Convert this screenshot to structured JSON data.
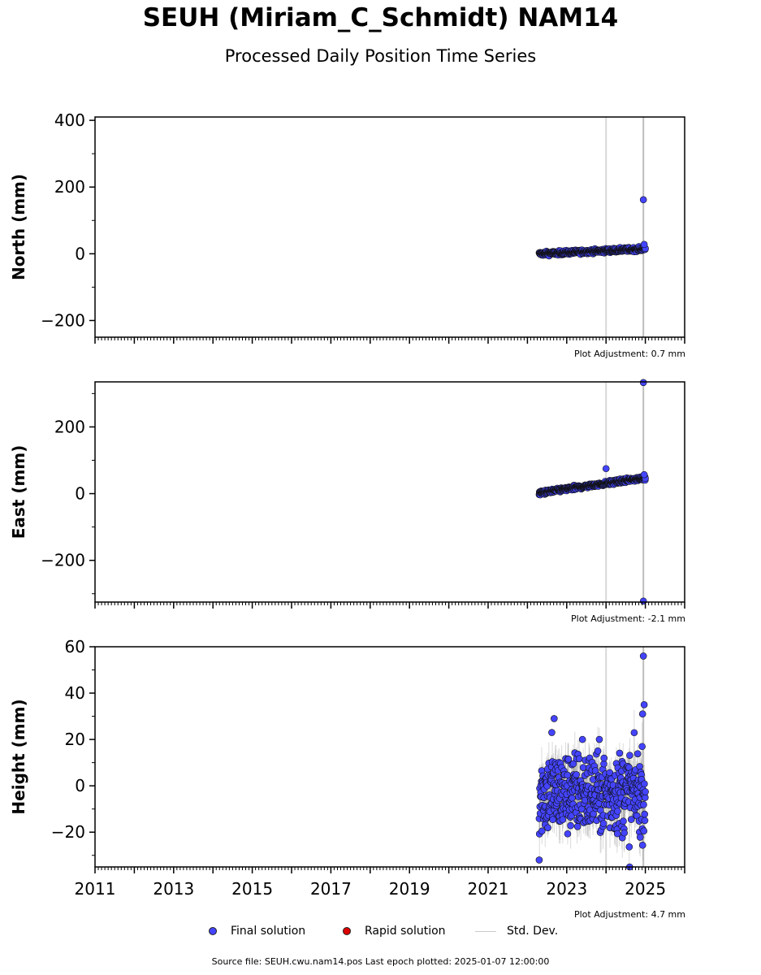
{
  "header": {
    "title": "SEUH (Miriam_C_Schmidt) NAM14",
    "subtitle": "Processed Daily Position Time Series"
  },
  "colors": {
    "final_solution": "#4444ff",
    "rapid_solution": "#dd0000",
    "std_dev": "#cccccc",
    "marker_edge": "#111111"
  },
  "legend": {
    "final": "Final solution",
    "rapid": "Rapid solution",
    "std": "Std. Dev."
  },
  "footer": {
    "source": "Source file: SEUH.cwu.nam14.pos  Last epoch plotted: 2025-01-07 12:00:00"
  },
  "chart_data": [
    {
      "type": "scatter",
      "panel": "north",
      "ylabel": "North (mm)",
      "adjustment": "Plot Adjustment: 0.7 mm",
      "xlim": [
        2011.0,
        2026.0
      ],
      "ylim": [
        -250,
        410
      ],
      "yticks": [
        -200,
        0,
        200,
        400
      ],
      "x_tick_labels": [],
      "vlines": [
        2024.0,
        2024.95
      ],
      "trend": {
        "start": 2022.3,
        "end": 2025.0,
        "y_start": 0,
        "y_end": 15
      },
      "noise": 3,
      "std": 3,
      "outliers": [
        {
          "x": 2024.95,
          "y": 162
        },
        {
          "x": 2024.97,
          "y": 28
        }
      ],
      "series": [
        {
          "name": "Final solution"
        }
      ]
    },
    {
      "type": "scatter",
      "panel": "east",
      "ylabel": "East (mm)",
      "adjustment": "Plot Adjustment: -2.1 mm",
      "xlim": [
        2011.0,
        2026.0
      ],
      "ylim": [
        -325,
        335
      ],
      "yticks": [
        -200,
        0,
        200
      ],
      "x_tick_labels": [],
      "vlines": [
        2024.0,
        2024.95
      ],
      "trend": {
        "start": 2022.3,
        "end": 2025.0,
        "y_start": 2,
        "y_end": 48
      },
      "noise": 3,
      "std": 3,
      "outliers": [
        {
          "x": 2024.95,
          "y": 333
        },
        {
          "x": 2024.95,
          "y": -322
        },
        {
          "x": 2024.0,
          "y": 75
        },
        {
          "x": 2024.97,
          "y": 57
        }
      ],
      "series": [
        {
          "name": "Final solution"
        }
      ]
    },
    {
      "type": "scatter",
      "panel": "height",
      "ylabel": "Height (mm)",
      "adjustment": "Plot Adjustment: 4.7 mm",
      "xlim": [
        2011.0,
        2026.0
      ],
      "ylim": [
        -35,
        60
      ],
      "yticks": [
        -20,
        0,
        20,
        40,
        60
      ],
      "x_tick_labels": [
        "2011",
        "2013",
        "2015",
        "2017",
        "2019",
        "2021",
        "2023",
        "2025"
      ],
      "vlines": [
        2024.0,
        2024.95
      ],
      "trend": {
        "start": 2022.3,
        "end": 2025.0,
        "y_start": -3,
        "y_end": -3
      },
      "noise": 9,
      "std": 7,
      "outliers": [
        {
          "x": 2024.95,
          "y": 56
        },
        {
          "x": 2024.97,
          "y": 35
        },
        {
          "x": 2024.93,
          "y": 31
        },
        {
          "x": 2022.68,
          "y": 29
        },
        {
          "x": 2022.3,
          "y": -32
        },
        {
          "x": 2024.6,
          "y": -35
        },
        {
          "x": 2022.62,
          "y": 23
        },
        {
          "x": 2023.4,
          "y": 20
        }
      ],
      "series": [
        {
          "name": "Final solution"
        }
      ]
    }
  ]
}
